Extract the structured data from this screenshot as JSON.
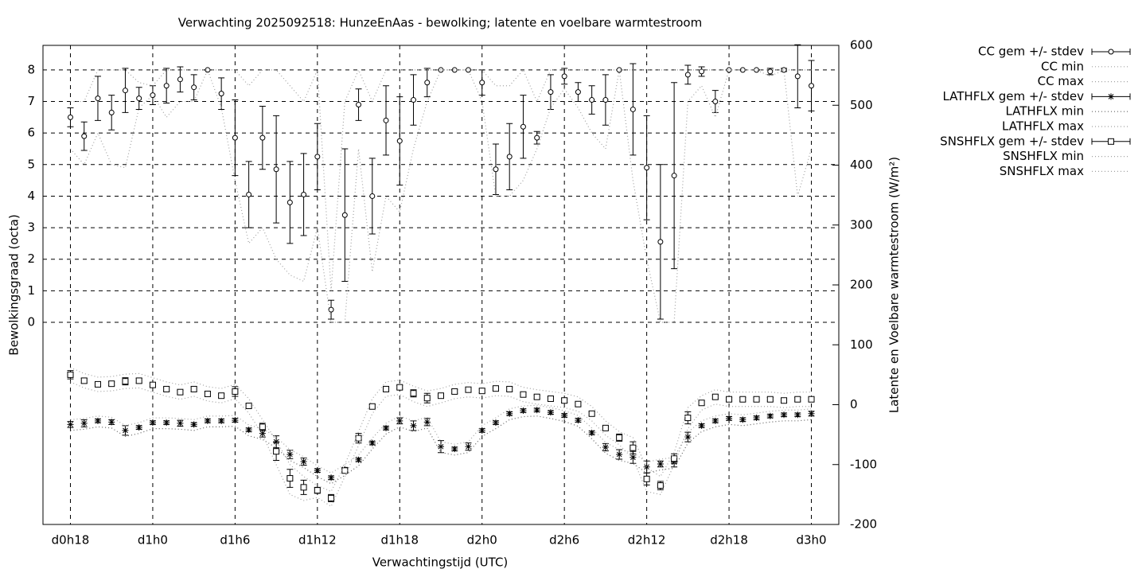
{
  "chart_data": {
    "type": "errorbar",
    "title": "Verwachting 2025092518: HunzeEnAas - bewolking; latente en voelbare warmtestroom",
    "x_label": "Verwachtingstijd (UTC)",
    "y_label": "Bewolkingsgraad (octa)",
    "y2_label": "Latente en Voelbare warmtestroom (W/m²)",
    "grid": true,
    "legend": "outside-top-right",
    "xlim": [
      16,
      74
    ],
    "xticks": [
      {
        "value": 18,
        "label": "d0h18"
      },
      {
        "value": 24,
        "label": "d1h0"
      },
      {
        "value": 30,
        "label": "d1h6"
      },
      {
        "value": 36,
        "label": "d1h12"
      },
      {
        "value": 42,
        "label": "d1h18"
      },
      {
        "value": 48,
        "label": "d2h0"
      },
      {
        "value": 54,
        "label": "d2h6"
      },
      {
        "value": 60,
        "label": "d2h12"
      },
      {
        "value": 66,
        "label": "d2h18"
      },
      {
        "value": 72,
        "label": "d3h0"
      }
    ],
    "ylim": [
      -6.41,
      8.78
    ],
    "yticks": [
      0,
      1,
      2,
      3,
      4,
      5,
      6,
      7,
      8
    ],
    "y2lim": [
      -200,
      600
    ],
    "y2ticks": [
      -200,
      -100,
      0,
      100,
      200,
      300,
      400,
      500,
      600
    ],
    "x": [
      18,
      19,
      20,
      21,
      22,
      23,
      24,
      25,
      26,
      27,
      28,
      29,
      30,
      31,
      32,
      33,
      34,
      35,
      36,
      37,
      38,
      39,
      40,
      41,
      42,
      43,
      44,
      45,
      46,
      47,
      48,
      49,
      50,
      51,
      52,
      53,
      54,
      55,
      56,
      57,
      58,
      59,
      60,
      61,
      62,
      63,
      64,
      65,
      66,
      67,
      68,
      69,
      70,
      71,
      72
    ],
    "series": [
      {
        "name": "CC gem +/- stdev",
        "style": "errorbars",
        "marker": "circle",
        "color": "#000000",
        "values": [
          6.5,
          5.9,
          7.1,
          6.65,
          7.35,
          7.1,
          7.2,
          7.5,
          7.7,
          7.45,
          8.0,
          7.25,
          5.85,
          4.05,
          5.85,
          4.85,
          3.8,
          4.05,
          5.25,
          0.4,
          3.4,
          6.9,
          4.0,
          6.4,
          5.75,
          7.05,
          7.6,
          8.0,
          8.0,
          8.0,
          7.6,
          4.85,
          5.25,
          6.2,
          5.85,
          7.3,
          7.8,
          7.3,
          7.05,
          7.05,
          8.0,
          6.75,
          4.9,
          2.55,
          4.65,
          7.85,
          7.95,
          7.0,
          8.0,
          8.0,
          8.0,
          7.95,
          8.0,
          7.8,
          7.5
        ],
        "errors": [
          0.3,
          0.45,
          0.7,
          0.55,
          0.7,
          0.35,
          0.3,
          0.55,
          0.4,
          0.4,
          0,
          0.5,
          1.2,
          1.05,
          1.0,
          1.7,
          1.3,
          1.3,
          1.05,
          0.3,
          2.1,
          0.5,
          1.2,
          1.1,
          1.4,
          0.8,
          0.45,
          0,
          0,
          0,
          0.4,
          0.8,
          1.05,
          1.0,
          0.2,
          0.55,
          0.25,
          0.3,
          0.45,
          0.8,
          0,
          1.45,
          1.65,
          2.45,
          2.95,
          0.3,
          0.15,
          0.35,
          0,
          0,
          0,
          0.1,
          0.05,
          1.0,
          0.8
        ]
      },
      {
        "name": "CC min",
        "style": "dotted",
        "color": "#a0a0a0",
        "values": [
          5.5,
          5.0,
          6.0,
          5.0,
          4.9,
          6.8,
          7.2,
          6.5,
          7.0,
          7.0,
          8,
          6.8,
          4.5,
          2.5,
          3.0,
          2.0,
          1.5,
          1.3,
          3.0,
          0,
          0,
          5.5,
          1.6,
          4.0,
          3.5,
          5.5,
          7.0,
          8,
          8,
          8,
          7.0,
          4.0,
          4.0,
          4.5,
          5.5,
          6.8,
          7.4,
          6.8,
          6.0,
          5.5,
          8,
          4.5,
          2.0,
          0,
          0,
          7.0,
          7.5,
          6.5,
          8,
          8,
          8,
          7.8,
          8,
          4.0,
          5.5
        ]
      },
      {
        "name": "CC max",
        "style": "dotted",
        "color": "#a0a0a0",
        "values": [
          7.0,
          7.0,
          8,
          8,
          8,
          7.6,
          7.5,
          8,
          8,
          8,
          8,
          8,
          8,
          7.5,
          8,
          8,
          7.5,
          7.0,
          8,
          1.0,
          7.0,
          8,
          7.0,
          8,
          8,
          8,
          8,
          8,
          8,
          8,
          8,
          7.5,
          7.5,
          8,
          7.0,
          8,
          8,
          8,
          8,
          8,
          8,
          8,
          8,
          8,
          8,
          8,
          8,
          8,
          8,
          8,
          8,
          8,
          8,
          8,
          8
        ]
      },
      {
        "name": "LATHFLX gem +/- stdev",
        "style": "errorbars",
        "marker": "asterisk",
        "axis": "y2",
        "color": "#000000",
        "values": [
          -33,
          -31,
          -27,
          -29,
          -43,
          -38,
          -30,
          -30,
          -31,
          -33,
          -27,
          -27,
          -26,
          -42,
          -48,
          -62,
          -83,
          -95,
          -110,
          -122,
          -108,
          -92,
          -64,
          -39,
          -27,
          -35,
          -29,
          -70,
          -74,
          -70,
          -43,
          -30,
          -15,
          -10,
          -9,
          -13,
          -18,
          -26,
          -47,
          -71,
          -83,
          -88,
          -104,
          -99,
          -96,
          -54,
          -35,
          -27,
          -23,
          -25,
          -22,
          -19,
          -17,
          -17,
          -15
        ],
        "errors": [
          5,
          6,
          3,
          4,
          8,
          3,
          3,
          3,
          5,
          3,
          3,
          3,
          3,
          3,
          6,
          10,
          7,
          6,
          3,
          3,
          3,
          3,
          3,
          3,
          5,
          8,
          6,
          10,
          3,
          6,
          3,
          3,
          3,
          3,
          3,
          3,
          3,
          3,
          3,
          6,
          8,
          10,
          10,
          5,
          8,
          8,
          3,
          3,
          3,
          3,
          3,
          3,
          3,
          3,
          4
        ]
      },
      {
        "name": "LATHFLX min",
        "style": "dotted",
        "axis": "y2",
        "color": "#606060",
        "values": [
          -43,
          -41,
          -37,
          -39,
          -53,
          -48,
          -40,
          -40,
          -41,
          -43,
          -37,
          -37,
          -36,
          -52,
          -58,
          -72,
          -93,
          -105,
          -120,
          -132,
          -118,
          -102,
          -74,
          -49,
          -37,
          -45,
          -39,
          -80,
          -84,
          -80,
          -53,
          -40,
          -25,
          -20,
          -19,
          -23,
          -28,
          -36,
          -57,
          -81,
          -93,
          -98,
          -114,
          -109,
          -106,
          -64,
          -45,
          -37,
          -33,
          -35,
          -32,
          -29,
          -27,
          -27,
          -25
        ]
      },
      {
        "name": "LATHFLX max",
        "style": "dotted",
        "axis": "y2",
        "color": "#a0a0a0",
        "values": [
          -25,
          -23,
          -19,
          -21,
          -35,
          -30,
          -22,
          -22,
          -23,
          -25,
          -19,
          -19,
          -18,
          -34,
          -40,
          -54,
          -75,
          -87,
          -102,
          -114,
          -100,
          -84,
          -56,
          -31,
          -19,
          -27,
          -21,
          -62,
          -66,
          -62,
          -35,
          -22,
          -7,
          -2,
          -1,
          -5,
          -10,
          -18,
          -39,
          -63,
          -75,
          -80,
          -96,
          -91,
          -88,
          -46,
          -27,
          -19,
          -15,
          -17,
          -14,
          -11,
          -9,
          -9,
          -7
        ]
      },
      {
        "name": "SNSHFLX gem +/- stdev",
        "style": "errorbars",
        "marker": "square",
        "axis": "y2",
        "color": "#000000",
        "values": [
          50,
          40,
          34,
          35,
          39,
          40,
          33,
          26,
          21,
          26,
          18,
          15,
          22,
          -2,
          -37,
          -78,
          -123,
          -138,
          -143,
          -156,
          -110,
          -56,
          -3,
          26,
          29,
          19,
          11,
          15,
          22,
          25,
          23,
          27,
          26,
          17,
          13,
          10,
          7,
          1,
          -15,
          -39,
          -55,
          -72,
          -124,
          -135,
          -90,
          -22,
          3,
          13,
          9,
          9,
          9,
          9,
          7,
          9,
          9
        ],
        "errors": [
          7,
          4,
          3,
          3,
          6,
          4,
          3,
          3,
          3,
          4,
          3,
          3,
          8,
          3,
          6,
          15,
          15,
          12,
          5,
          6,
          4,
          8,
          3,
          3,
          3,
          6,
          8,
          3,
          3,
          3,
          3,
          3,
          3,
          3,
          3,
          3,
          3,
          3,
          3,
          3,
          6,
          10,
          10,
          7,
          8,
          10,
          3,
          3,
          3,
          3,
          3,
          3,
          3,
          3,
          3
        ]
      },
      {
        "name": "SNSHFLX min",
        "style": "dotted",
        "axis": "y2",
        "color": "#a0a0a0",
        "values": [
          38,
          28,
          22,
          23,
          27,
          28,
          21,
          14,
          9,
          14,
          6,
          3,
          10,
          -14,
          -50,
          -100,
          -150,
          -160,
          -155,
          -170,
          -120,
          -68,
          -15,
          14,
          17,
          5,
          -3,
          3,
          10,
          13,
          11,
          15,
          14,
          5,
          1,
          -2,
          -5,
          -11,
          -27,
          -51,
          -67,
          -90,
          -145,
          -150,
          -100,
          -40,
          -9,
          1,
          -3,
          -3,
          -3,
          -3,
          -5,
          -3,
          -3
        ]
      },
      {
        "name": "SNSHFLX max",
        "style": "dotted",
        "axis": "y2",
        "color": "#a0a0a0",
        "values": [
          62,
          52,
          46,
          47,
          51,
          52,
          45,
          38,
          33,
          38,
          30,
          27,
          34,
          10,
          -25,
          -60,
          -100,
          -120,
          -135,
          -145,
          -100,
          -45,
          10,
          38,
          41,
          31,
          23,
          27,
          34,
          37,
          35,
          39,
          38,
          29,
          25,
          22,
          19,
          13,
          -3,
          -27,
          -45,
          -55,
          -105,
          -120,
          -80,
          -5,
          15,
          25,
          21,
          21,
          21,
          21,
          19,
          21,
          21
        ]
      }
    ]
  }
}
